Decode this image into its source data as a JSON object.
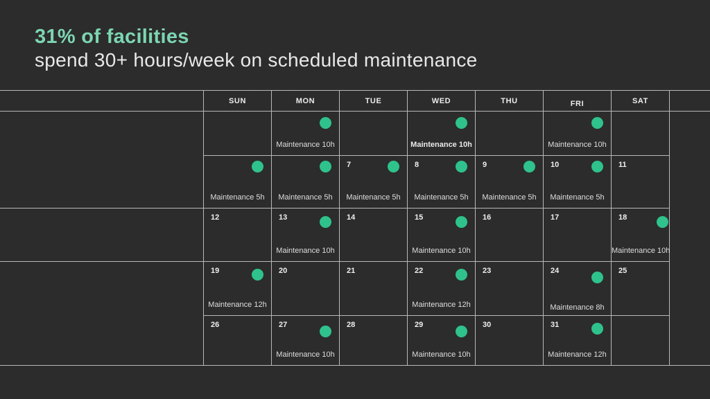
{
  "title": {
    "highlight": "31% of facilities",
    "subtitle": "spend 30+ hours/week on scheduled maintenance"
  },
  "colors": {
    "background": "#2C2C2C",
    "accent_teal": "#7CD6B1",
    "dot_green": "#2FC28C",
    "grid_line": "#B9B9B9",
    "heading_text": "#ECECEC",
    "body_text": "#DEDEDE"
  },
  "calendar": {
    "day_headers": [
      "SUN",
      "MON",
      "TUE",
      "WED",
      "THU",
      "FRI",
      "SAT"
    ],
    "weeks": [
      [
        {},
        {
          "dot": true,
          "label": "Maintenance 10h"
        },
        {},
        {
          "dot": true,
          "label": "Maintenance 10h",
          "emphasis": true
        },
        {},
        {
          "dot": true,
          "label": "Maintenance 10h"
        },
        {}
      ],
      [
        {
          "dot": true,
          "label": "Maintenance 5h"
        },
        {
          "dot": true,
          "label": "Maintenance 5h"
        },
        {
          "day": "7",
          "dot": true,
          "label": "Maintenance 5h"
        },
        {
          "day": "8",
          "dot": true,
          "label": "Maintenance 5h"
        },
        {
          "day": "9",
          "dot": true,
          "label": "Maintenance 5h"
        },
        {
          "day": "10",
          "dot": true,
          "label": "Maintenance 5h"
        },
        {
          "day": "11"
        }
      ],
      [
        {
          "day": "12"
        },
        {
          "day": "13",
          "dot": true,
          "label": "Maintenance 10h"
        },
        {
          "day": "14"
        },
        {
          "day": "15",
          "dot": true,
          "label": "Maintenance 10h"
        },
        {
          "day": "16"
        },
        {
          "day": "17"
        },
        {
          "day": "18",
          "dot": true,
          "label": "Maintenance 10h"
        }
      ],
      [
        {
          "day": "19",
          "dot": true,
          "label": "Maintenance 12h"
        },
        {
          "day": "20"
        },
        {
          "day": "21"
        },
        {
          "day": "22",
          "dot": true,
          "label": "Maintenance 12h"
        },
        {
          "day": "23"
        },
        {
          "day": "24",
          "dot": true,
          "label": "Maintenance 8h"
        },
        {
          "day": "25"
        }
      ],
      [
        {
          "day": "26"
        },
        {
          "day": "27",
          "dot": true,
          "label": "Maintenance 10h"
        },
        {
          "day": "28"
        },
        {
          "day": "29",
          "dot": true,
          "label": "Maintenance 10h"
        },
        {
          "day": "30"
        },
        {
          "day": "31",
          "dot": true,
          "label": "Maintenance 12h"
        },
        {}
      ]
    ]
  }
}
